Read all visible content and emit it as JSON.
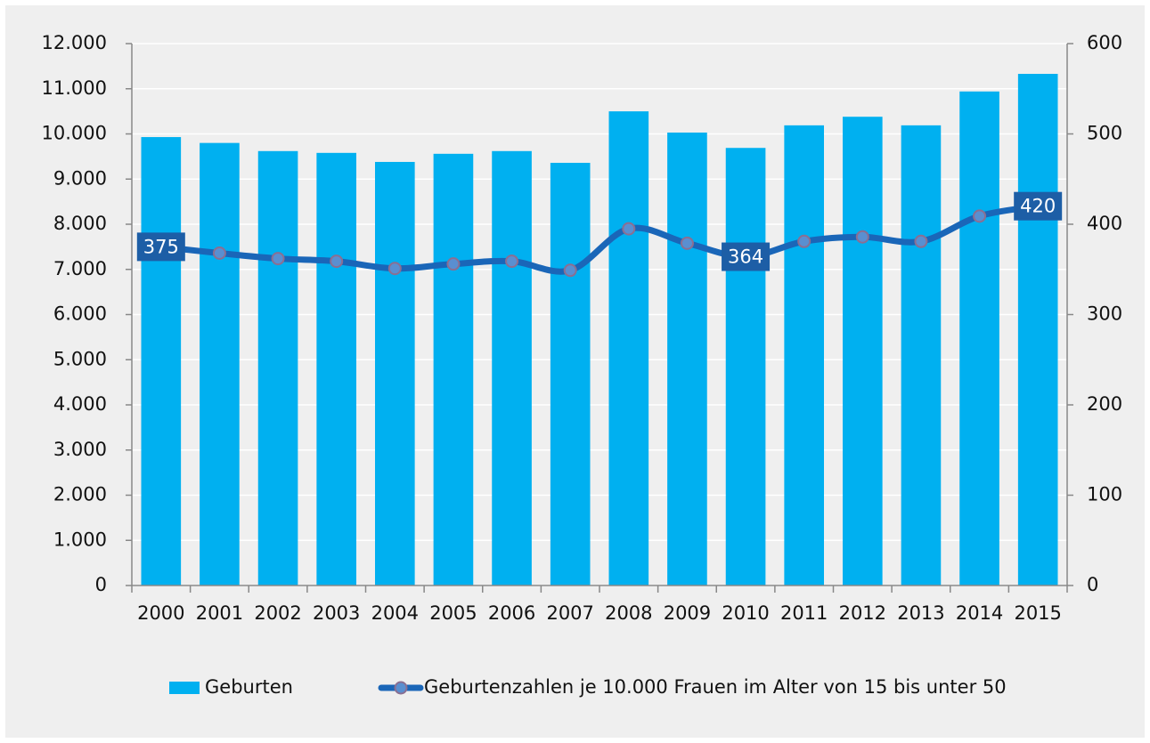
{
  "chart_data": {
    "type": "bar",
    "categories": [
      "2000",
      "2001",
      "2002",
      "2003",
      "2004",
      "2005",
      "2006",
      "2007",
      "2008",
      "2009",
      "2010",
      "2011",
      "2012",
      "2013",
      "2014",
      "2015"
    ],
    "series": [
      {
        "name": "Geburten",
        "type": "bar",
        "color": "#00b0f0",
        "axis": "y",
        "values": [
          9930,
          9800,
          9620,
          9580,
          9380,
          9560,
          9620,
          9360,
          10500,
          10030,
          9690,
          10190,
          10380,
          10190,
          10940,
          11330
        ]
      },
      {
        "name": "Geburtenzahlen je 10.000 Frauen im Alter von 15 bis unter 50",
        "type": "line",
        "color": "#1a66b8",
        "axis": "y2",
        "values": [
          375,
          368,
          362,
          359,
          351,
          356,
          359,
          349,
          395,
          379,
          364,
          381,
          386,
          381,
          409,
          420
        ],
        "value_labels": [
          "375",
          null,
          null,
          null,
          null,
          null,
          null,
          null,
          null,
          null,
          "364",
          null,
          null,
          null,
          null,
          "420"
        ]
      }
    ],
    "ylim": [
      0,
      12000
    ],
    "yticks": [
      0,
      {
        "value": 1000,
        "label": "1.000"
      },
      {
        "value": 2000,
        "label": "2.000"
      },
      {
        "value": 3000,
        "label": "3.000"
      },
      {
        "value": 4000,
        "label": "4.000"
      },
      {
        "value": 5000,
        "label": "5.000"
      },
      {
        "value": 6000,
        "label": "6.000"
      },
      {
        "value": 7000,
        "label": "7.000"
      },
      {
        "value": 8000,
        "label": "8.000"
      },
      {
        "value": 9000,
        "label": "9.000"
      },
      {
        "value": 10000,
        "label": "10.000"
      },
      {
        "value": 11000,
        "label": "11.000"
      },
      {
        "value": 12000,
        "label": "12.000"
      }
    ],
    "y2lim": [
      0,
      600
    ],
    "y2ticks": [
      0,
      100,
      200,
      300,
      400,
      500,
      600
    ],
    "grid": true,
    "legend": "bottom"
  }
}
